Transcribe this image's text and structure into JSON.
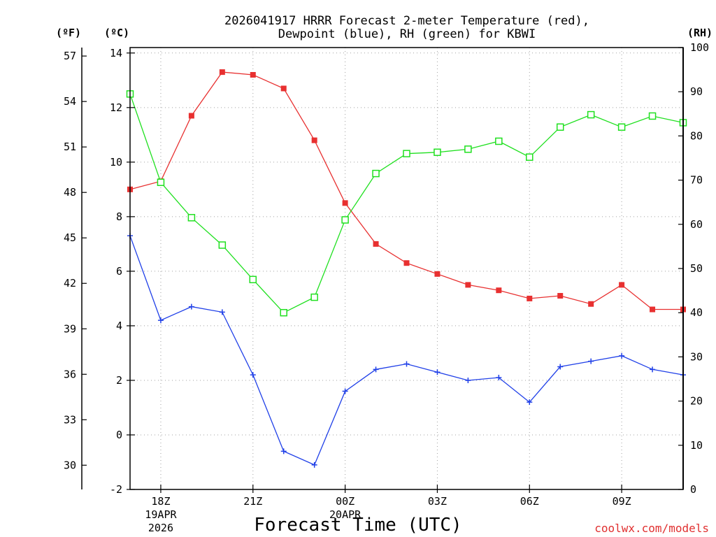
{
  "chart_data": {
    "type": "line",
    "title_line1": "2026041917 HRRR Forecast 2-meter Temperature (red),",
    "title_line2": "Dewpoint (blue), RH (green) for KBWI",
    "xlabel": "Forecast Time (UTC)",
    "credit": "coolwx.com/models",
    "units": {
      "fahrenheit": "(ºF)",
      "celsius": "(ºC)",
      "rh": "(RH)"
    },
    "x_hours": [
      17,
      18,
      19,
      20,
      21,
      22,
      23,
      24,
      25,
      26,
      27,
      28,
      29,
      30,
      31,
      32,
      33,
      34,
      35
    ],
    "x_range": [
      17,
      35
    ],
    "x_ticks": [
      {
        "hour": 18,
        "label": "18Z",
        "sub1": "19APR",
        "sub2": "2026"
      },
      {
        "hour": 21,
        "label": "21Z",
        "sub1": "",
        "sub2": ""
      },
      {
        "hour": 24,
        "label": "00Z",
        "sub1": "20APR",
        "sub2": ""
      },
      {
        "hour": 27,
        "label": "03Z",
        "sub1": "",
        "sub2": ""
      },
      {
        "hour": 30,
        "label": "06Z",
        "sub1": "",
        "sub2": ""
      },
      {
        "hour": 33,
        "label": "09Z",
        "sub1": "",
        "sub2": ""
      }
    ],
    "celsius_range": [
      -2,
      14.2
    ],
    "celsius_ticks": [
      "-2",
      "0",
      "2",
      "4",
      "6",
      "8",
      "10",
      "12",
      "14"
    ],
    "fahrenheit_ticks": [
      "30",
      "33",
      "36",
      "39",
      "42",
      "45",
      "48",
      "51",
      "54",
      "57"
    ],
    "rh_range": [
      0,
      100
    ],
    "rh_ticks": [
      "0",
      "10",
      "20",
      "30",
      "40",
      "50",
      "60",
      "70",
      "80",
      "90",
      "100"
    ],
    "series": [
      {
        "name": "2-meter Temperature",
        "color": "#e83030",
        "axis": "celsius",
        "marker": "filled-square",
        "values": [
          9.0,
          9.3,
          11.7,
          13.3,
          13.2,
          12.7,
          10.8,
          8.5,
          7.0,
          6.3,
          5.9,
          5.5,
          5.3,
          5.0,
          5.1,
          4.8,
          5.5,
          4.6,
          4.6
        ]
      },
      {
        "name": "Dewpoint",
        "color": "#2040e8",
        "axis": "celsius",
        "marker": "plus",
        "values": [
          7.3,
          4.2,
          4.7,
          4.5,
          2.2,
          -0.6,
          -1.1,
          1.6,
          2.4,
          2.6,
          2.3,
          2.0,
          2.1,
          1.2,
          2.5,
          2.7,
          2.9,
          2.4,
          2.2
        ]
      },
      {
        "name": "RH",
        "color": "#20e020",
        "axis": "rh",
        "marker": "open-square",
        "values": [
          89.5,
          69.5,
          61.5,
          55.3,
          47.5,
          40.0,
          43.5,
          61.0,
          71.5,
          76.0,
          76.3,
          77.0,
          78.8,
          75.2,
          82.0,
          84.8,
          82.0,
          84.5,
          83.0
        ]
      }
    ]
  }
}
